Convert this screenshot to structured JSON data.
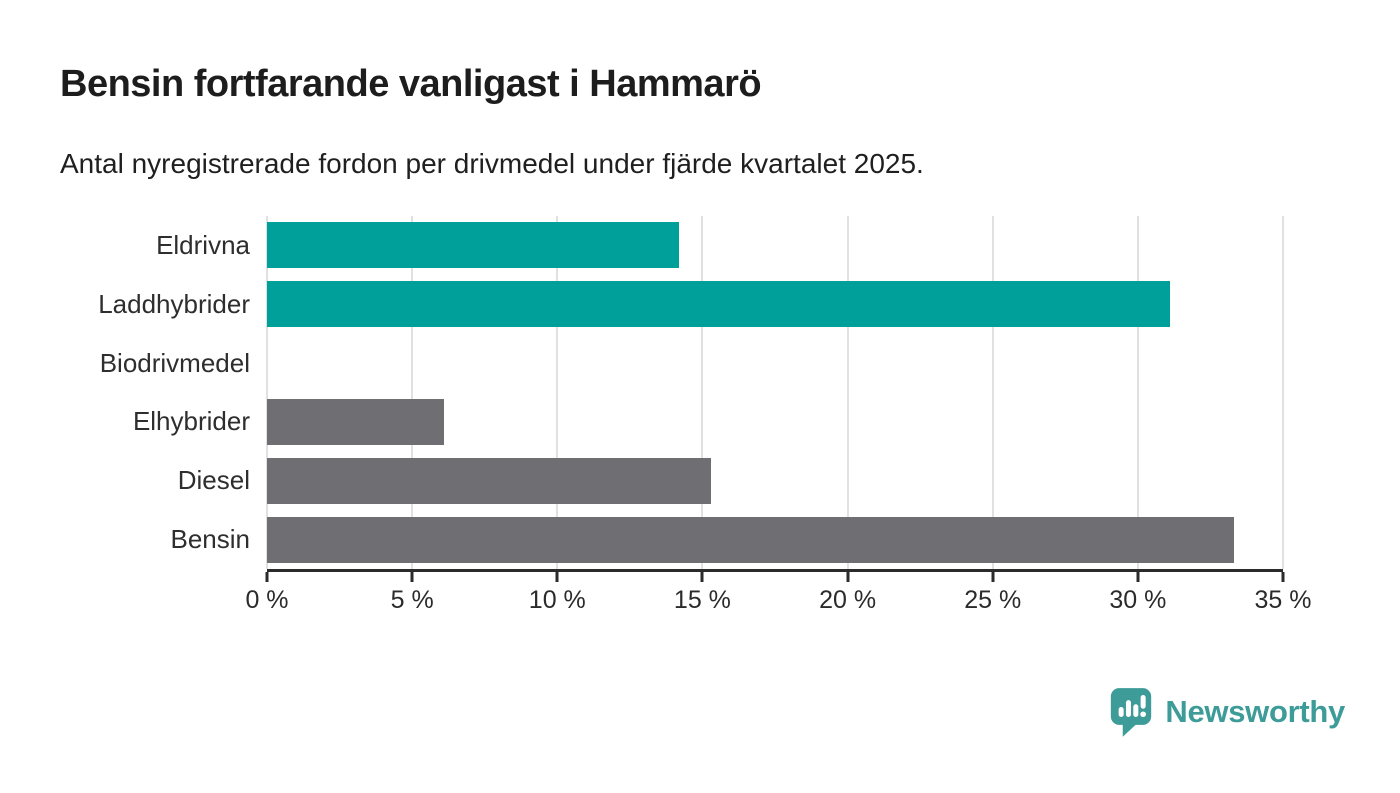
{
  "header": {
    "title": "Bensin fortfarande vanligast i Hammarö",
    "subtitle": "Antal nyregistrerade fordon per drivmedel under fjärde kvartalet 2025."
  },
  "chart_data": {
    "type": "bar",
    "orientation": "horizontal",
    "title": "Bensin fortfarande vanligast i Hammarö",
    "subtitle": "Antal nyregistrerade fordon per drivmedel under fjärde kvartalet 2025.",
    "categories": [
      "Eldrivna",
      "Laddhybrider",
      "Biodrivmedel",
      "Elhybrider",
      "Diesel",
      "Bensin"
    ],
    "values": [
      14.2,
      31.1,
      0,
      6.1,
      15.3,
      33.3
    ],
    "unit": "%",
    "bar_colors": [
      "#00A09A",
      "#00A09A",
      "#6E6E73",
      "#6E6E73",
      "#6E6E73",
      "#6E6E73"
    ],
    "xlim": [
      0,
      35
    ],
    "x_tick_values": [
      0,
      5,
      10,
      15,
      20,
      25,
      30,
      35
    ],
    "x_tick_labels": [
      "0 %",
      "5 %",
      "10 %",
      "15 %",
      "20 %",
      "25 %",
      "30 %",
      "35 %"
    ],
    "grid": true,
    "legend": false,
    "xlabel": "",
    "ylabel": ""
  },
  "colors": {
    "accent_teal": "#00A09A",
    "bar_gray": "#6E6E73",
    "gridline": "#E1E1E1",
    "axis": "#2B2B2B",
    "text": "#1D1D1D",
    "brand_teal": "#3D9B98"
  },
  "footer": {
    "brand": "Newsworthy"
  }
}
